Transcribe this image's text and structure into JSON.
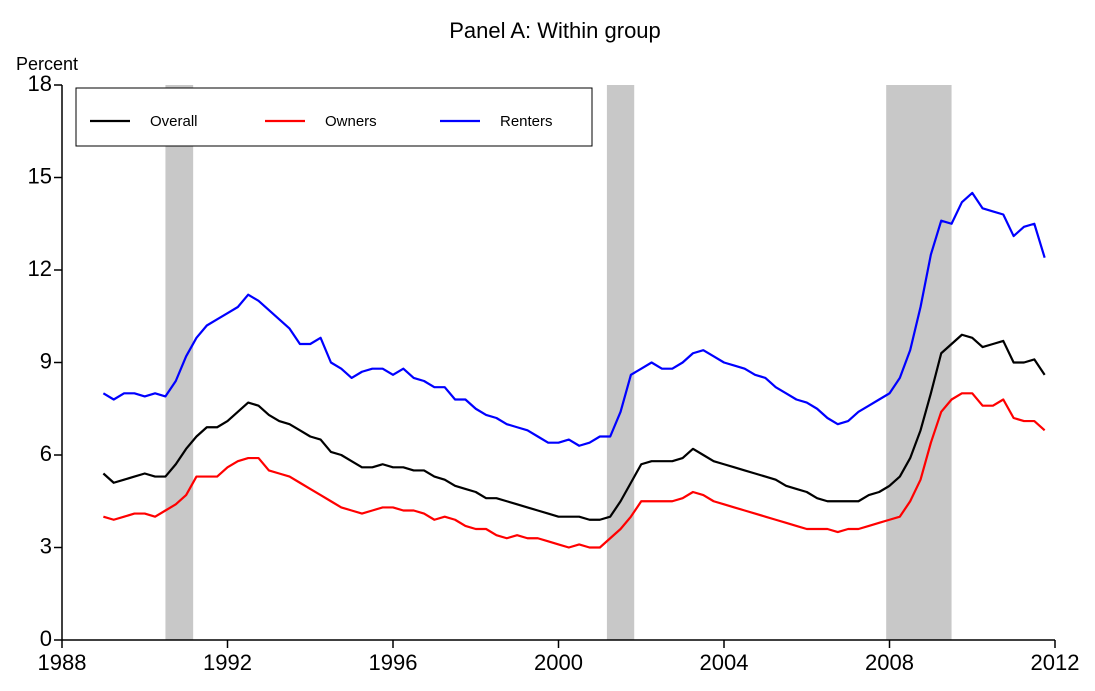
{
  "chart_data": {
    "type": "line",
    "title": "Panel A: Within group",
    "ylabel": "Percent",
    "x": [
      1989,
      1989.25,
      1989.5,
      1989.75,
      1990,
      1990.25,
      1990.5,
      1990.75,
      1991,
      1991.25,
      1991.5,
      1991.75,
      1992,
      1992.25,
      1992.5,
      1992.75,
      1993,
      1993.25,
      1993.5,
      1993.75,
      1994,
      1994.25,
      1994.5,
      1994.75,
      1995,
      1995.25,
      1995.5,
      1995.75,
      1996,
      1996.25,
      1996.5,
      1996.75,
      1997,
      1997.25,
      1997.5,
      1997.75,
      1998,
      1998.25,
      1998.5,
      1998.75,
      1999,
      1999.25,
      1999.5,
      1999.75,
      2000,
      2000.25,
      2000.5,
      2000.75,
      2001,
      2001.25,
      2001.5,
      2001.75,
      2002,
      2002.25,
      2002.5,
      2002.75,
      2003,
      2003.25,
      2003.5,
      2003.75,
      2004,
      2004.25,
      2004.5,
      2004.75,
      2005,
      2005.25,
      2005.5,
      2005.75,
      2006,
      2006.25,
      2006.5,
      2006.75,
      2007,
      2007.25,
      2007.5,
      2007.75,
      2008,
      2008.25,
      2008.5,
      2008.75,
      2009,
      2009.25,
      2009.5,
      2009.75,
      2010,
      2010.25,
      2010.5,
      2010.75,
      2011,
      2011.25,
      2011.5,
      2011.75
    ],
    "series": [
      {
        "name": "Overall",
        "color": "#000000",
        "values": [
          5.4,
          5.1,
          5.2,
          5.3,
          5.4,
          5.3,
          5.3,
          5.7,
          6.2,
          6.6,
          6.9,
          6.9,
          7.1,
          7.4,
          7.7,
          7.6,
          7.3,
          7.1,
          7.0,
          6.8,
          6.6,
          6.5,
          6.1,
          6.0,
          5.8,
          5.6,
          5.6,
          5.7,
          5.6,
          5.6,
          5.5,
          5.5,
          5.3,
          5.2,
          5.0,
          4.9,
          4.8,
          4.6,
          4.6,
          4.5,
          4.4,
          4.3,
          4.2,
          4.1,
          4.0,
          4.0,
          4.0,
          3.9,
          3.9,
          4.0,
          4.5,
          5.1,
          5.7,
          5.8,
          5.8,
          5.8,
          5.9,
          6.2,
          6.0,
          5.8,
          5.7,
          5.6,
          5.5,
          5.4,
          5.3,
          5.2,
          5.0,
          4.9,
          4.8,
          4.6,
          4.5,
          4.5,
          4.5,
          4.5,
          4.7,
          4.8,
          5.0,
          5.3,
          5.9,
          6.8,
          8.0,
          9.3,
          9.6,
          9.9,
          9.8,
          9.5,
          9.6,
          9.7,
          9.0,
          9.0,
          9.1,
          8.6
        ]
      },
      {
        "name": "Owners",
        "color": "#ff0000",
        "values": [
          4.0,
          3.9,
          4.0,
          4.1,
          4.1,
          4.0,
          4.2,
          4.4,
          4.7,
          5.3,
          5.3,
          5.3,
          5.6,
          5.8,
          5.9,
          5.9,
          5.5,
          5.4,
          5.3,
          5.1,
          4.9,
          4.7,
          4.5,
          4.3,
          4.2,
          4.1,
          4.2,
          4.3,
          4.3,
          4.2,
          4.2,
          4.1,
          3.9,
          4.0,
          3.9,
          3.7,
          3.6,
          3.6,
          3.4,
          3.3,
          3.4,
          3.3,
          3.3,
          3.2,
          3.1,
          3.0,
          3.1,
          3.0,
          3.0,
          3.3,
          3.6,
          4.0,
          4.5,
          4.5,
          4.5,
          4.5,
          4.6,
          4.8,
          4.7,
          4.5,
          4.4,
          4.3,
          4.2,
          4.1,
          4.0,
          3.9,
          3.8,
          3.7,
          3.6,
          3.6,
          3.6,
          3.5,
          3.6,
          3.6,
          3.7,
          3.8,
          3.9,
          4.0,
          4.5,
          5.2,
          6.4,
          7.4,
          7.8,
          8.0,
          8.0,
          7.6,
          7.6,
          7.8,
          7.2,
          7.1,
          7.1,
          6.8
        ]
      },
      {
        "name": "Renters",
        "color": "#0000ff",
        "values": [
          8.0,
          7.8,
          8.0,
          8.0,
          7.9,
          8.0,
          7.9,
          8.4,
          9.2,
          9.8,
          10.2,
          10.4,
          10.6,
          10.8,
          11.2,
          11.0,
          10.7,
          10.4,
          10.1,
          9.6,
          9.6,
          9.8,
          9.0,
          8.8,
          8.5,
          8.7,
          8.8,
          8.8,
          8.6,
          8.8,
          8.5,
          8.4,
          8.2,
          8.2,
          7.8,
          7.8,
          7.5,
          7.3,
          7.2,
          7.0,
          6.9,
          6.8,
          6.6,
          6.4,
          6.4,
          6.5,
          6.3,
          6.4,
          6.6,
          6.6,
          7.4,
          8.6,
          8.8,
          9.0,
          8.8,
          8.8,
          9.0,
          9.3,
          9.4,
          9.2,
          9.0,
          8.9,
          8.8,
          8.6,
          8.5,
          8.2,
          8.0,
          7.8,
          7.7,
          7.5,
          7.2,
          7.0,
          7.1,
          7.4,
          7.6,
          7.8,
          8.0,
          8.5,
          9.4,
          10.8,
          12.5,
          13.6,
          13.5,
          14.2,
          14.5,
          14.0,
          13.9,
          13.8,
          13.1,
          13.4,
          13.5,
          12.4
        ]
      }
    ],
    "shaded_regions": [
      [
        1990.5,
        1991.17
      ],
      [
        2001.17,
        2001.83
      ],
      [
        2007.92,
        2009.5
      ]
    ],
    "shade_color": "#c8c8c8",
    "xlim": [
      1988,
      2012
    ],
    "xticks": [
      1988,
      1992,
      1996,
      2000,
      2004,
      2008,
      2012
    ],
    "ylim": [
      0,
      18
    ],
    "yticks": [
      0,
      3,
      6,
      9,
      12,
      15,
      18
    ],
    "legend": "top-left"
  }
}
